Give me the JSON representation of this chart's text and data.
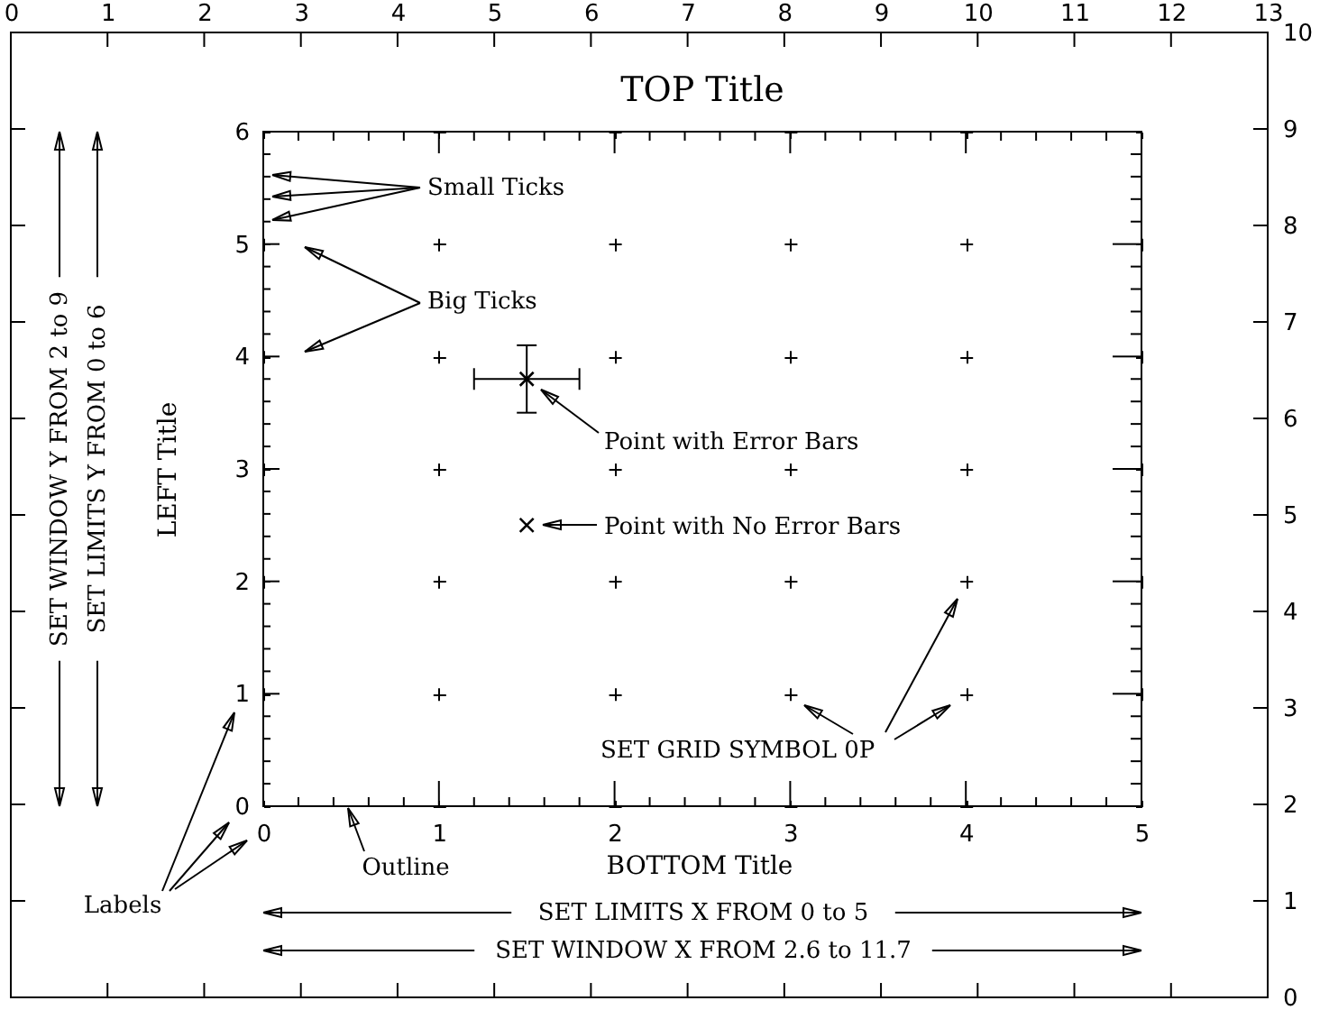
{
  "chart_data": {
    "type": "scatter",
    "title": "TOP Title",
    "xlabel": "BOTTOM Title",
    "ylabel": "LEFT Title",
    "series": [
      {
        "color": "#000000",
        "x": [
          1.5
        ],
        "values": [
          3.8
        ],
        "errors": [
          0.3
        ],
        "xerrors": [
          0.3
        ]
      },
      {
        "color": "#000000",
        "x": [
          1.5
        ],
        "values": [
          2.5
        ]
      }
    ],
    "xlim": [
      0,
      5
    ],
    "xticks": [
      0,
      {
        "value": 0.2,
        "label": null
      },
      {
        "value": 0.4,
        "label": null
      },
      {
        "value": 0.6,
        "label": null
      },
      {
        "value": 0.8,
        "label": null
      },
      1,
      {
        "value": 1.2,
        "label": null
      },
      {
        "value": 1.4,
        "label": null
      },
      {
        "value": 1.6,
        "label": null
      },
      {
        "value": 1.8,
        "label": null
      },
      2,
      {
        "value": 2.2,
        "label": null
      },
      {
        "value": 2.4,
        "label": null
      },
      {
        "value": 2.6,
        "label": null
      },
      {
        "value": 2.8,
        "label": null
      },
      3,
      {
        "value": 3.2,
        "label": null
      },
      {
        "value": 3.4,
        "label": null
      },
      {
        "value": 3.6,
        "label": null
      },
      {
        "value": 3.8,
        "label": null
      },
      4,
      {
        "value": 4.2,
        "label": null
      },
      {
        "value": 4.4,
        "label": null
      },
      {
        "value": 4.6,
        "label": null
      },
      {
        "value": 4.8,
        "label": null
      },
      5
    ],
    "ylim": [
      0,
      6
    ],
    "yticks": [
      0,
      {
        "value": 0.2,
        "label": null
      },
      {
        "value": 0.4,
        "label": null
      },
      {
        "value": 0.6,
        "label": null
      },
      {
        "value": 0.8,
        "label": null
      },
      1,
      {
        "value": 1.2,
        "label": null
      },
      {
        "value": 1.4,
        "label": null
      },
      {
        "value": 1.6,
        "label": null
      },
      {
        "value": 1.8,
        "label": null
      },
      2,
      {
        "value": 2.2,
        "label": null
      },
      {
        "value": 2.4,
        "label": null
      },
      {
        "value": 2.6,
        "label": null
      },
      {
        "value": 2.8,
        "label": null
      },
      3,
      {
        "value": 3.2,
        "label": null
      },
      {
        "value": 3.4,
        "label": null
      },
      {
        "value": 3.6,
        "label": null
      },
      {
        "value": 3.8,
        "label": null
      },
      4,
      {
        "value": 4.2,
        "label": null
      },
      {
        "value": 4.4,
        "label": null
      },
      {
        "value": 4.6,
        "label": null
      },
      {
        "value": 4.8,
        "label": null
      },
      5,
      {
        "value": 5.2,
        "label": null
      },
      {
        "value": 5.4,
        "label": null
      },
      {
        "value": 5.6,
        "label": null
      },
      {
        "value": 5.8,
        "label": null
      },
      6
    ],
    "x2lim": [
      0,
      13
    ],
    "x2ticks": [
      0,
      1,
      2,
      3,
      4,
      5,
      6,
      7,
      8,
      9,
      10,
      11,
      12,
      13
    ],
    "y2lim": [
      0,
      10
    ],
    "y2ticks": [
      0,
      1,
      2,
      3,
      4,
      5,
      6,
      7,
      8,
      9,
      10
    ],
    "grid": true,
    "marker": "cross",
    "annotations": [
      "Small Ticks",
      "Big Ticks",
      "Point with Error Bars",
      "Point with No Error Bars",
      "SET GRID SYMBOL 0P",
      "SET WINDOW Y FROM 2 to 9",
      "SET LIMITS Y FROM 0 to 6",
      "Labels",
      "Outline",
      "SET LIMITS X FROM 0 to 5",
      "SET WINDOW X FROM 2.6 to 11.7"
    ]
  }
}
